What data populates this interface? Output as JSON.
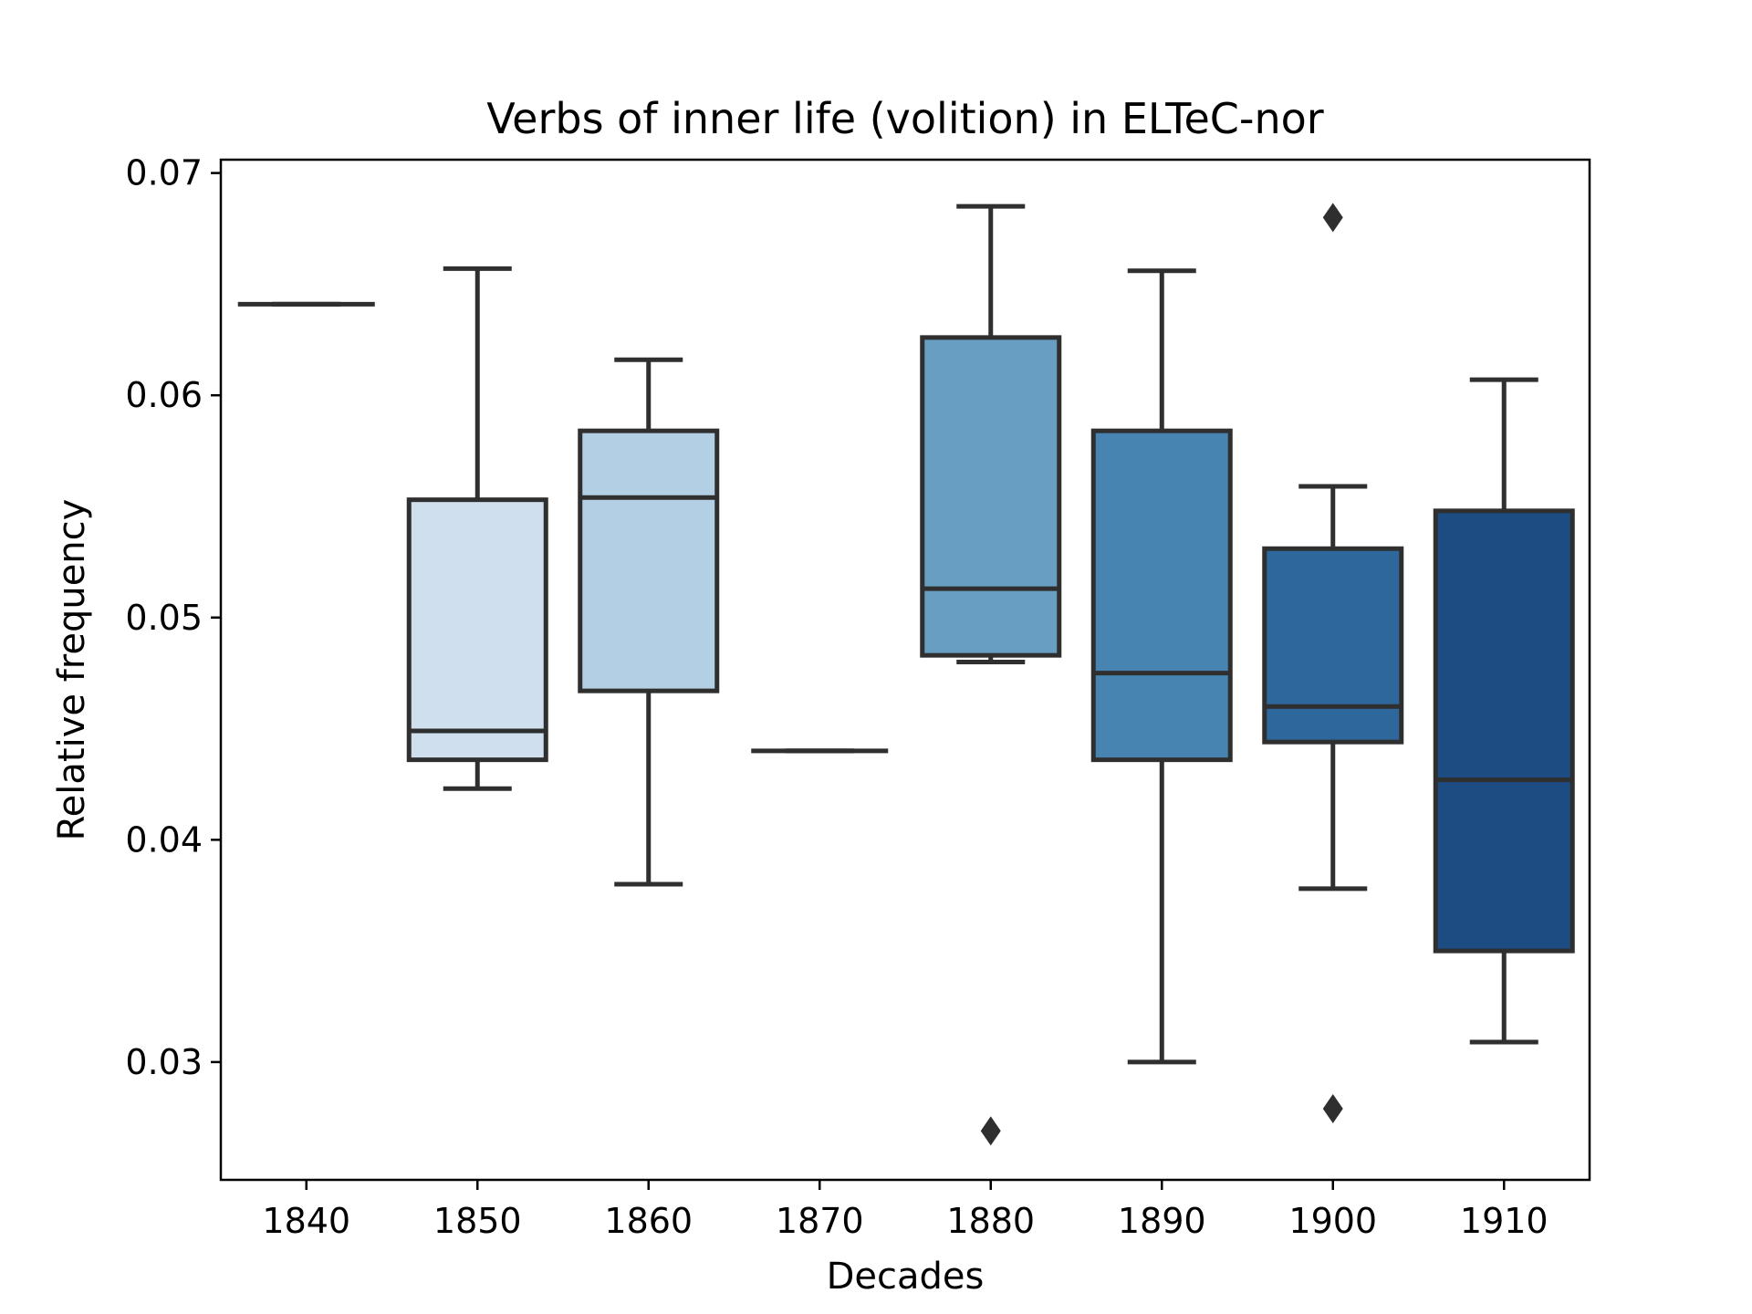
{
  "chart_data": {
    "type": "box",
    "title": "Verbs of inner life (volition) in ELTeC-nor",
    "xlabel": "Decades",
    "ylabel": "Relative frequency",
    "ylim": [
      0.0247,
      0.0706
    ],
    "yticks": [
      0.03,
      0.04,
      0.05,
      0.06,
      0.07
    ],
    "ytick_labels": [
      "0.03",
      "0.04",
      "0.05",
      "0.06",
      "0.07"
    ],
    "grid": false,
    "categories": [
      "1840",
      "1850",
      "1860",
      "1870",
      "1880",
      "1890",
      "1900",
      "1910"
    ],
    "boxes": [
      {
        "category": "1840",
        "whislo": 0.0641,
        "q1": 0.0641,
        "med": 0.0641,
        "q3": 0.0641,
        "whishi": 0.0641,
        "fliers": [],
        "color": "#dfebf7"
      },
      {
        "category": "1850",
        "whislo": 0.0423,
        "q1": 0.0436,
        "med": 0.0449,
        "q3": 0.0553,
        "whishi": 0.0657,
        "fliers": [],
        "color": "#cfdfed"
      },
      {
        "category": "1860",
        "whislo": 0.038,
        "q1": 0.0467,
        "med": 0.0554,
        "q3": 0.0584,
        "whishi": 0.0616,
        "fliers": [],
        "color": "#b3cfe3"
      },
      {
        "category": "1870",
        "whislo": 0.044,
        "q1": 0.044,
        "med": 0.044,
        "q3": 0.044,
        "whishi": 0.044,
        "fliers": [],
        "color": "#8dbcd9"
      },
      {
        "category": "1880",
        "whislo": 0.048,
        "q1": 0.0483,
        "med": 0.0513,
        "q3": 0.0626,
        "whishi": 0.0685,
        "fliers": [
          0.0269
        ],
        "color": "#679ec1"
      },
      {
        "category": "1890",
        "whislo": 0.03,
        "q1": 0.0436,
        "med": 0.0475,
        "q3": 0.0584,
        "whishi": 0.0656,
        "fliers": [],
        "color": "#4784b1"
      },
      {
        "category": "1900",
        "whislo": 0.0378,
        "q1": 0.0444,
        "med": 0.046,
        "q3": 0.0531,
        "whishi": 0.0559,
        "fliers": [
          0.068,
          0.0279
        ],
        "color": "#2e679b"
      },
      {
        "category": "1910",
        "whislo": 0.0309,
        "q1": 0.035,
        "med": 0.0427,
        "q3": 0.0548,
        "whishi": 0.0607,
        "fliers": [],
        "color": "#1c4c81"
      }
    ]
  }
}
